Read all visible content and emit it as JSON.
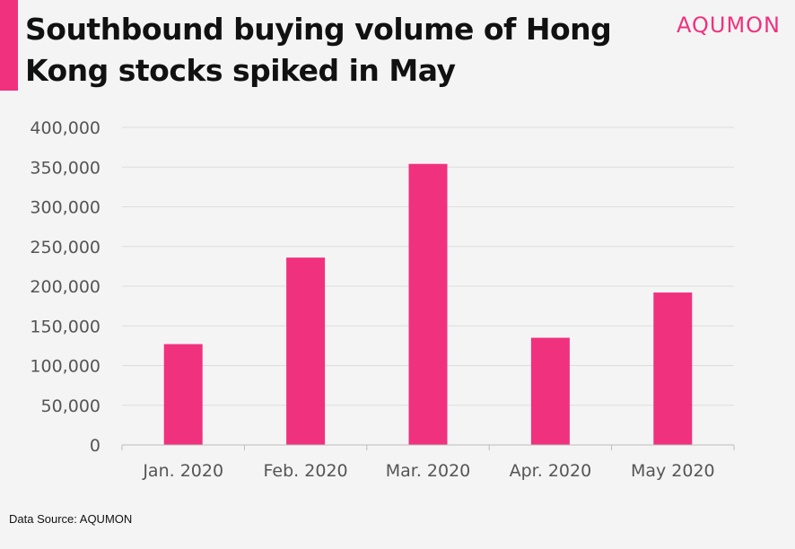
{
  "header": {
    "title": "Southbound buying volume of Hong Kong stocks spiked in May",
    "logo": "AQUMON"
  },
  "footer": {
    "source": "Data Source: AQUMON"
  },
  "colors": {
    "accent": "#f0317e",
    "bar": "#f0317e",
    "gridline": "#dddddd",
    "axis": "#bbbbbb"
  },
  "chart_data": {
    "type": "bar",
    "title": "Southbound buying volume of Hong Kong stocks spiked in May",
    "xlabel": "",
    "ylabel": "",
    "categories": [
      "Jan. 2020",
      "Feb. 2020",
      "Mar. 2020",
      "Apr. 2020",
      "May 2020"
    ],
    "values": [
      127000,
      236000,
      354000,
      135000,
      192000
    ],
    "ylim": [
      0,
      400000
    ],
    "yticks": [
      0,
      50000,
      100000,
      150000,
      200000,
      250000,
      300000,
      350000,
      400000
    ],
    "ytick_labels": [
      "0",
      "50,000",
      "100,000",
      "150,000",
      "200,000",
      "250,000",
      "300,000",
      "350,000",
      "400,000"
    ],
    "grid": true,
    "legend": "none"
  }
}
